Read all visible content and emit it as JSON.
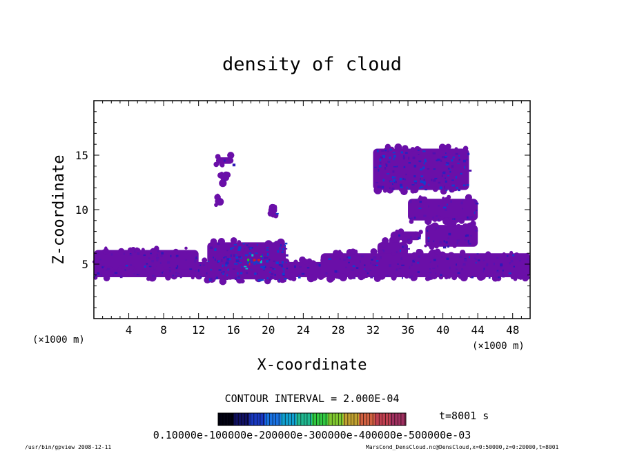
{
  "chart_data": {
    "type": "heatmap",
    "title": "density of cloud",
    "xlabel": "X-coordinate",
    "ylabel": "Z-coordinate",
    "x_unit": "(×1000 m)",
    "y_unit": "(×1000 m)",
    "xlim": [
      0,
      50
    ],
    "ylim": [
      0,
      20
    ],
    "x_ticks": [
      4,
      8,
      12,
      16,
      20,
      24,
      28,
      32,
      36,
      40,
      44,
      48
    ],
    "y_ticks": [
      5,
      10,
      15
    ],
    "contour_interval_text": "CONTOUR INTERVAL = 2.000E-04",
    "time_text": "t=8001 s",
    "colorbar_labels_text": "0.10000e-100000e-200000e-300000e-400000e-500000e-03",
    "colorbar_min": 0.0,
    "colorbar_max": 0.0006,
    "colors": {
      "low": "#6a0fa8",
      "mid_blue": "#1040d0",
      "cyan": "#00c8c8",
      "green": "#20c820",
      "high": "#d02020"
    },
    "regions": [
      {
        "name": "low-layer",
        "x": [
          0,
          50
        ],
        "z": [
          3.8,
          5.2
        ],
        "level": 5e-05
      },
      {
        "name": "left-bumps",
        "x": [
          0,
          12
        ],
        "z": [
          4.5,
          6.3
        ],
        "level": 5e-05
      },
      {
        "name": "central-cell",
        "x": [
          13,
          22
        ],
        "z": [
          3.6,
          7.0
        ],
        "level": 0.0003
      },
      {
        "name": "central-core",
        "x": [
          17,
          19.5
        ],
        "z": [
          4.5,
          6.2
        ],
        "level": 0.0005
      },
      {
        "name": "small-patch-1",
        "x": [
          14,
          16
        ],
        "z": [
          14.2,
          14.8
        ],
        "level": 5e-05
      },
      {
        "name": "small-patch-2",
        "x": [
          14.5,
          15.5
        ],
        "z": [
          12.6,
          13.2
        ],
        "level": 5e-05
      },
      {
        "name": "small-patch-3",
        "x": [
          14,
          14.6
        ],
        "z": [
          10.6,
          11.2
        ],
        "level": 5e-05
      },
      {
        "name": "small-patch-4",
        "x": [
          20,
          21
        ],
        "z": [
          9.6,
          10.3
        ],
        "level": 5e-05
      },
      {
        "name": "upper-cloud",
        "x": [
          32,
          43
        ],
        "z": [
          11.8,
          15.6
        ],
        "level": 0.0002
      },
      {
        "name": "mid-cloud-1",
        "x": [
          36,
          44
        ],
        "z": [
          9.0,
          11.0
        ],
        "level": 5e-05
      },
      {
        "name": "mid-cloud-2",
        "x": [
          34,
          37.5
        ],
        "z": [
          7.2,
          8.0
        ],
        "level": 5e-05
      },
      {
        "name": "mid-cloud-3",
        "x": [
          32.5,
          36
        ],
        "z": [
          5.8,
          7.0
        ],
        "level": 5e-05
      },
      {
        "name": "right-cloud",
        "x": [
          38,
          44
        ],
        "z": [
          6.6,
          8.6
        ],
        "level": 5e-05
      },
      {
        "name": "right-lower",
        "x": [
          26,
          50
        ],
        "z": [
          3.8,
          6.0
        ],
        "level": 5e-05
      }
    ]
  },
  "footer": {
    "left": "/usr/bin/gpview   2008-12-11",
    "right": "MarsCond_DensCloud.nc@DensCloud,x=0:50000,z=0:20000,t=8001"
  }
}
